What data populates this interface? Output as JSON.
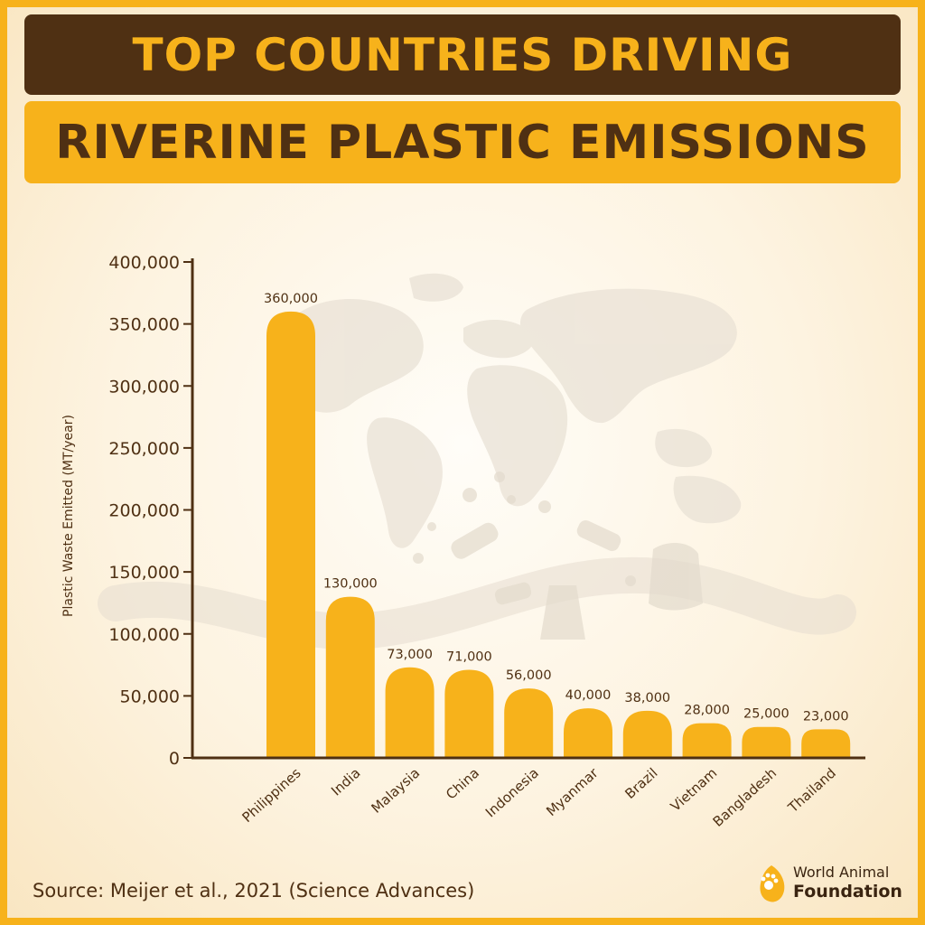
{
  "header": {
    "title_line1": "TOP COUNTRIES DRIVING",
    "title_line2": "RIVERINE PLASTIC EMISSIONS"
  },
  "chart_data": {
    "type": "bar",
    "title": "TOP COUNTRIES DRIVING RIVERINE PLASTIC EMISSIONS",
    "xlabel": "",
    "ylabel": "Plastic Waste Emitted (MT/year)",
    "ylim": [
      0,
      400000
    ],
    "yticks": [
      0,
      50000,
      100000,
      150000,
      200000,
      250000,
      300000,
      350000,
      400000
    ],
    "ytick_labels": [
      "0",
      "50,000",
      "100,000",
      "150,000",
      "200,000",
      "250,000",
      "300,000",
      "350,000",
      "400,000"
    ],
    "categories": [
      "Philippines",
      "India",
      "Malaysia",
      "China",
      "Indonesia",
      "Myanmar",
      "Brazil",
      "Vietnam",
      "Bangladesh",
      "Thailand"
    ],
    "values": [
      360000,
      130000,
      73000,
      71000,
      56000,
      40000,
      38000,
      28000,
      25000,
      23000
    ],
    "value_labels": [
      "360,000",
      "130,000",
      "73,000",
      "71,000",
      "56,000",
      "40,000",
      "38,000",
      "28,000",
      "25,000",
      "23,000"
    ],
    "bar_color": "#f7b21b",
    "axis_color": "#4f3013",
    "grid": false,
    "legend": "none"
  },
  "footer": {
    "source": "Source: Meijer et al., 2021 (Science Advances)"
  },
  "logo": {
    "line1": "World Animal",
    "line2": "Foundation",
    "icon": "paw-leaf-icon"
  },
  "colors": {
    "brand_yellow": "#f7b21b",
    "brand_brown": "#4f3013"
  }
}
